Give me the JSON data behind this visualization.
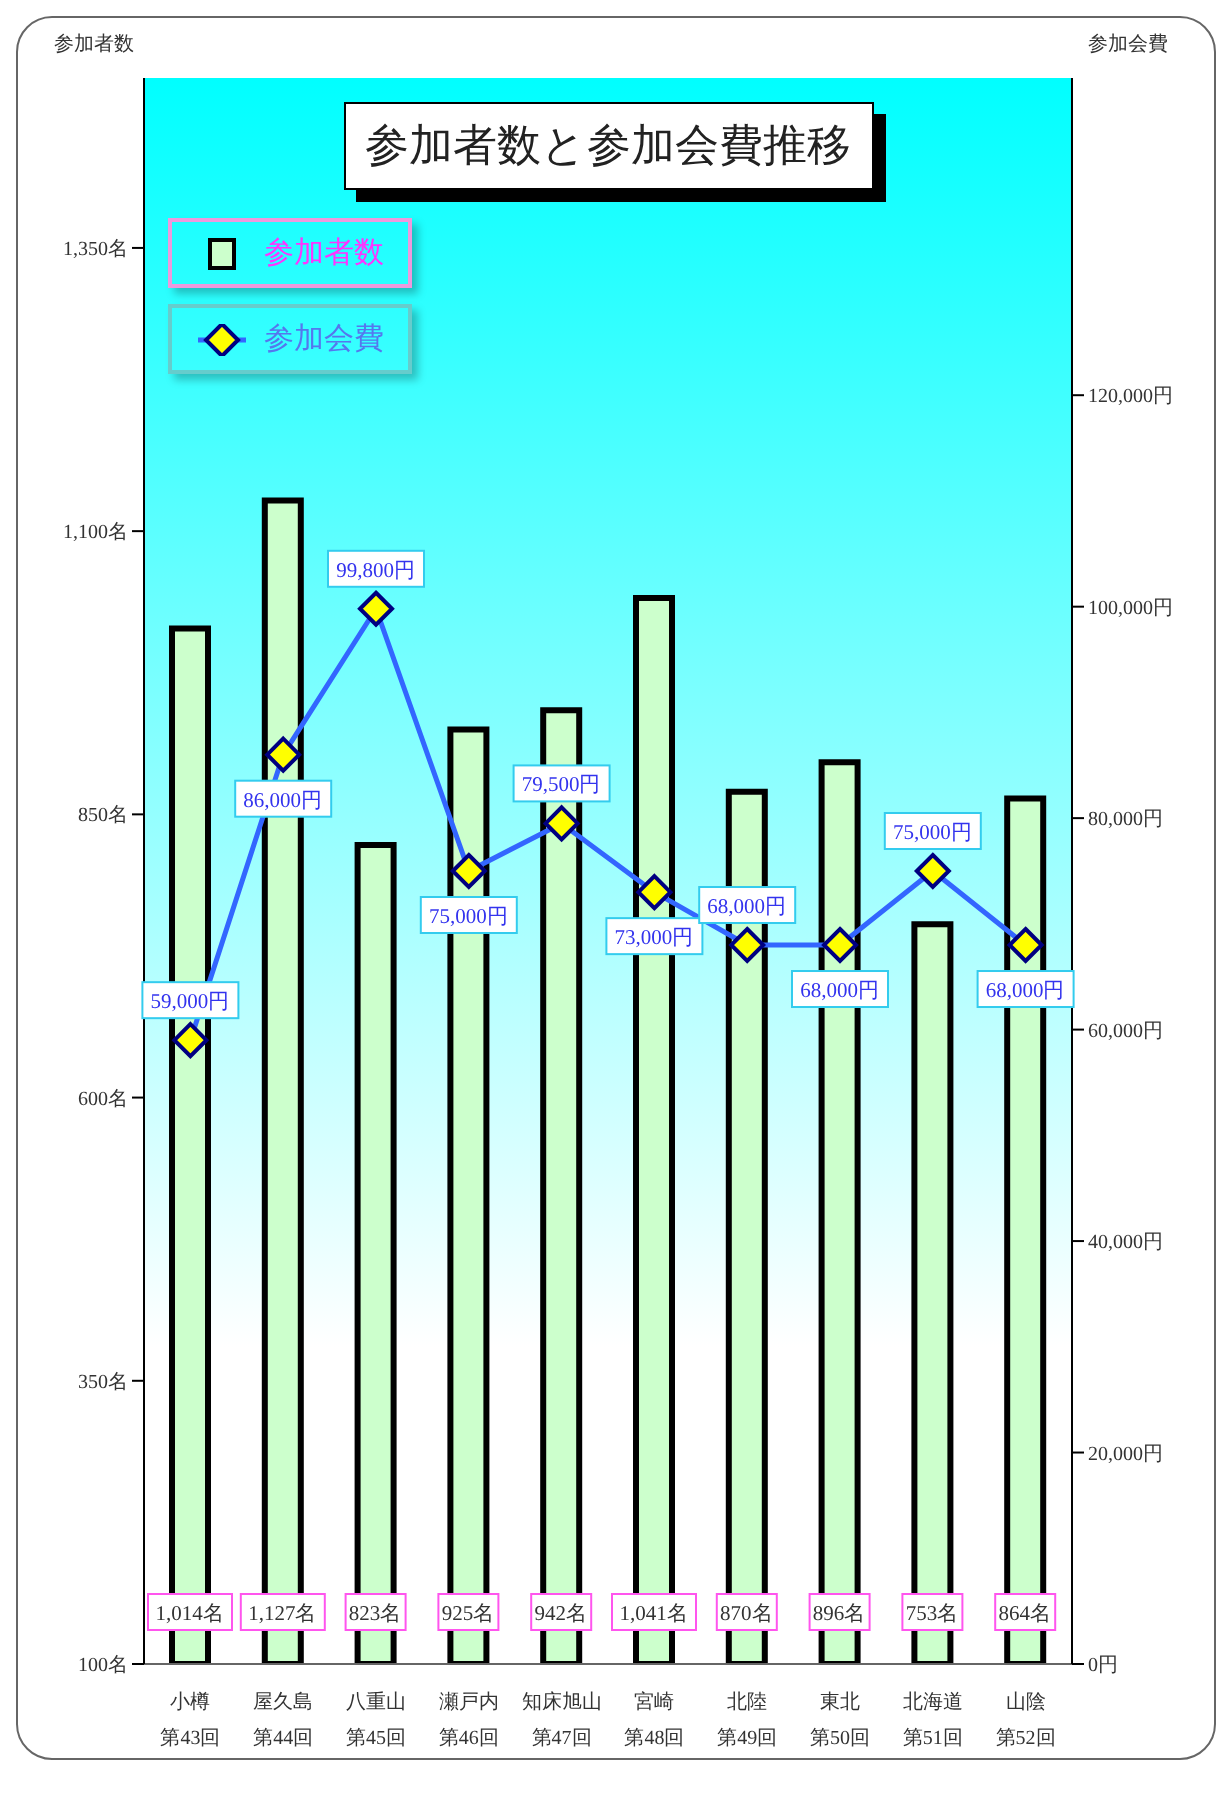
{
  "chart_data": {
    "type": "bar",
    "title": "参加者数と参加会費推移",
    "ylabel": "参加者数",
    "y2label": "参加会費",
    "categories": [
      "小樽第43回",
      "屋久島第44回",
      "八重山第45回",
      "瀬戸内第46回",
      "知床旭山第47回",
      "宮崎第48回",
      "北陸第49回",
      "東北第50回",
      "北海道第51回",
      "山陰第52回"
    ],
    "series": [
      {
        "name": "参加者数",
        "color": "#ccffcc",
        "values": [
          1014,
          1127,
          823,
          925,
          942,
          1041,
          870,
          896,
          753,
          864
        ],
        "value_labels": [
          "1,014名",
          "1,127名",
          "823名",
          "925名",
          "942名",
          "1,041名",
          "870名",
          "896名",
          "753名",
          "864名"
        ]
      },
      {
        "name": "参加会費",
        "type": "line",
        "axis": "y2",
        "color": "#3366ff",
        "values": [
          59000,
          86000,
          99800,
          75000,
          79500,
          73000,
          68000,
          68000,
          75000,
          68000
        ],
        "value_labels": [
          "59,000円",
          "86,000円",
          "99,800円",
          "75,000円",
          "79,500円",
          "73,000円",
          "68,000円",
          "68,000円",
          "75,000円",
          "68,000円"
        ]
      }
    ],
    "ylim": [
      100,
      1500
    ],
    "yticks": [
      {
        "value": 100,
        "label": "100名"
      },
      {
        "value": 350,
        "label": "350名"
      },
      {
        "value": 600,
        "label": "600名"
      },
      {
        "value": 850,
        "label": "850名"
      },
      {
        "value": 1100,
        "label": "1,100名"
      },
      {
        "value": 1350,
        "label": "1,350名"
      }
    ],
    "y2lim": [
      0,
      150000
    ],
    "y2ticks": [
      {
        "value": 0,
        "label": "0円"
      },
      {
        "value": 20000,
        "label": "20,000円"
      },
      {
        "value": 40000,
        "label": "40,000円"
      },
      {
        "value": 60000,
        "label": "60,000円"
      },
      {
        "value": 80000,
        "label": "80,000円"
      },
      {
        "value": 100000,
        "label": "100,000円"
      },
      {
        "value": 120000,
        "label": "120,000円"
      }
    ],
    "marker": "diamond",
    "legend": "top left"
  }
}
